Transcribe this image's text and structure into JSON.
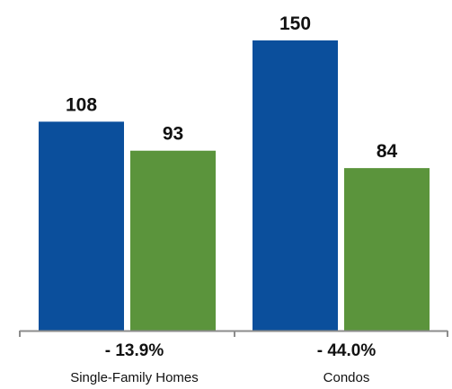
{
  "chart_data": {
    "type": "bar",
    "categories": [
      "Single-Family Homes",
      "Condos"
    ],
    "series": [
      {
        "values": [
          108,
          150
        ],
        "color": "#0b4f9c"
      },
      {
        "values": [
          93,
          84
        ],
        "color": "#5b943c"
      }
    ],
    "value_labels": [
      [
        "108",
        "150"
      ],
      [
        "93",
        "84"
      ]
    ],
    "change_labels": [
      "- 13.9%",
      "- 44.0%"
    ],
    "title": "",
    "xlabel": "",
    "ylabel": "",
    "ylim": [
      0,
      150
    ],
    "axis_color": "#8c8c8c",
    "grid": false,
    "legend": "none"
  }
}
